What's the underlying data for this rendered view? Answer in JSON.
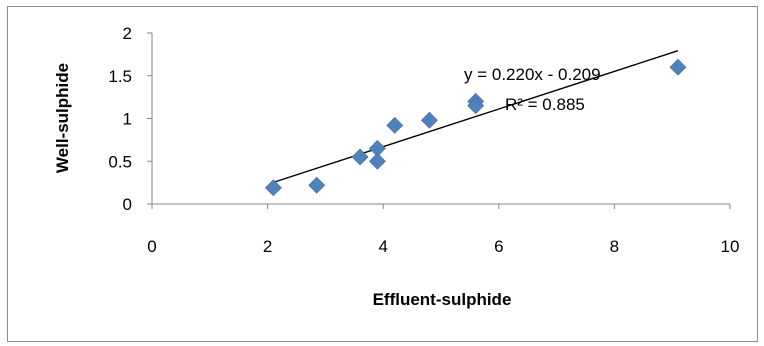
{
  "chart_data": {
    "type": "scatter",
    "xlabel": "Effluent-sulphide",
    "ylabel": "Well-sulphide",
    "xlim": [
      0,
      10
    ],
    "ylim": [
      0,
      2
    ],
    "xticks": [
      "0",
      "2",
      "4",
      "6",
      "8",
      "10"
    ],
    "yticks": [
      "0",
      "0.5",
      "1",
      "1.5",
      "2"
    ],
    "grid": false,
    "legend": "none",
    "marker_color": "#4f81bd",
    "trendline_color": "#000000",
    "series": [
      {
        "points": [
          {
            "x": 2.1,
            "y": 0.19
          },
          {
            "x": 2.85,
            "y": 0.22
          },
          {
            "x": 3.6,
            "y": 0.55
          },
          {
            "x": 3.9,
            "y": 0.65
          },
          {
            "x": 3.9,
            "y": 0.5
          },
          {
            "x": 4.2,
            "y": 0.92
          },
          {
            "x": 4.8,
            "y": 0.98
          },
          {
            "x": 5.6,
            "y": 1.2
          },
          {
            "x": 5.6,
            "y": 1.15
          },
          {
            "x": 9.1,
            "y": 1.6
          }
        ]
      }
    ],
    "trendline": {
      "x_start": 2.1,
      "x_end": 9.1,
      "slope": 0.22,
      "intercept": -0.209
    },
    "annotations": {
      "equation": "y = 0.220x - 0.209",
      "r_squared": "R² = 0.885"
    }
  }
}
